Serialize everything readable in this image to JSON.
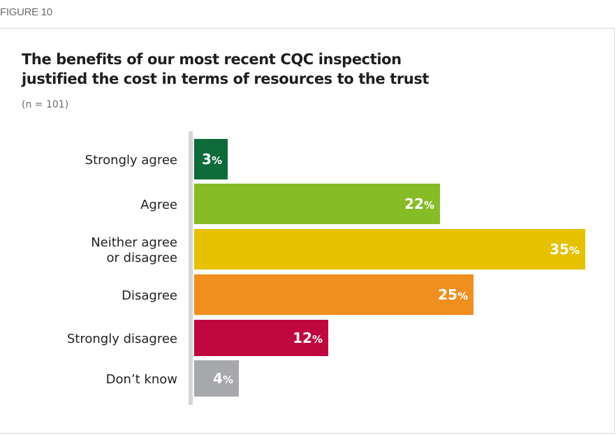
{
  "figure_label": "FIGURE 10",
  "title_line1": "The benefits of our most recent CQC inspection",
  "title_line2": "justified the cost in terms of resources to the trust",
  "subtitle": "(n = 101)",
  "chart_data": {
    "type": "bar",
    "orientation": "horizontal",
    "title": "The benefits of our most recent CQC inspection justified the cost in terms of resources to the trust",
    "subtitle": "(n = 101)",
    "categories": [
      [
        "Strongly agree"
      ],
      [
        "Agree"
      ],
      [
        "Neither agree",
        "or disagree"
      ],
      [
        "Disagree"
      ],
      [
        "Strongly disagree"
      ],
      [
        "Don’t know"
      ]
    ],
    "values": [
      3,
      22,
      35,
      25,
      12,
      4
    ],
    "value_suffix": "%",
    "colors": [
      "#0e6b3a",
      "#86bc25",
      "#e5c100",
      "#f08e1e",
      "#c0063f",
      "#a6a8ab"
    ],
    "xlim": [
      0,
      35
    ],
    "grid": false,
    "legend": "none"
  }
}
